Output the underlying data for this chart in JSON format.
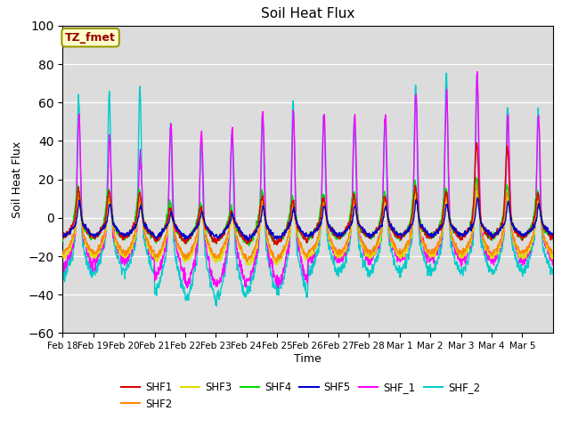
{
  "title": "Soil Heat Flux",
  "ylabel": "Soil Heat Flux",
  "xlabel": "Time",
  "ylim": [
    -60,
    100
  ],
  "yticks": [
    -60,
    -40,
    -20,
    0,
    20,
    40,
    60,
    80,
    100
  ],
  "background_color": "#dcdcdc",
  "grid_color": "#ffffff",
  "series_colors": {
    "SHF1": "#dd0000",
    "SHF2": "#ff8800",
    "SHF3": "#dddd00",
    "SHF4": "#00dd00",
    "SHF5": "#0000cc",
    "SHF_1": "#ff00ff",
    "SHF_2": "#00cccc"
  },
  "annotation_text": "TZ_fmet",
  "annotation_color": "#990000",
  "annotation_bg": "#ffffcc",
  "annotation_border": "#999900",
  "n_days": 16,
  "xtick_labels": [
    "Feb 18",
    "Feb 19",
    "Feb 20",
    "Feb 21",
    "Feb 22",
    "Feb 23",
    "Feb 24",
    "Feb 25",
    "Feb 26",
    "Feb 27",
    "Feb 28",
    "Mar 1",
    "Mar 2",
    "Mar 3",
    "Mar 4",
    "Mar 5"
  ],
  "line_width": 1.0,
  "pts_per_day": 96
}
